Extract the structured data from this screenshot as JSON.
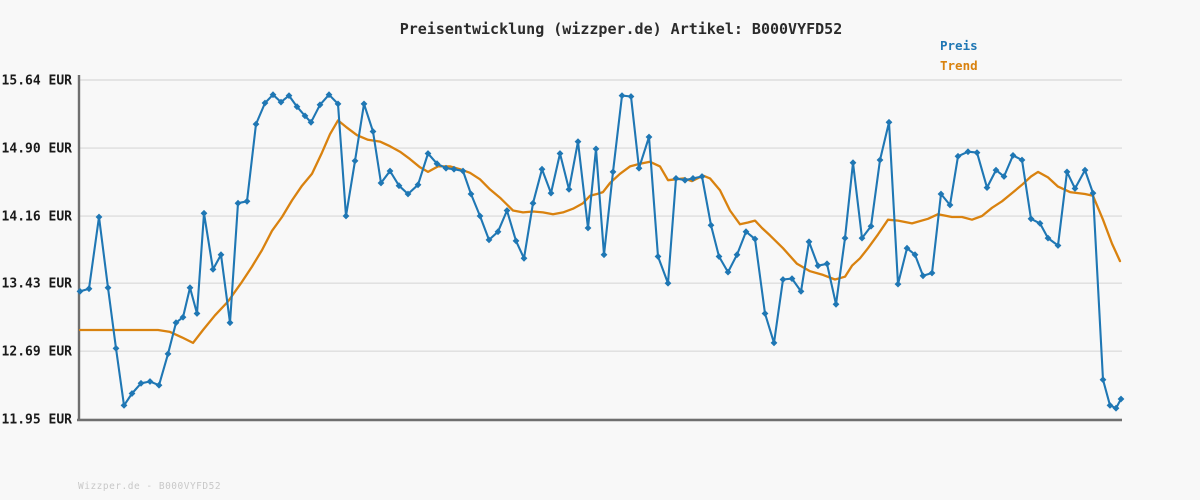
{
  "window": {
    "background": "#f8f8f8"
  },
  "header": {
    "title": "Preisentwicklung (wizzper.de) Artikel: B000VYFD52"
  },
  "legend": {
    "position": "top-right",
    "items": [
      {
        "label": "Preis",
        "color": "#1f77b4"
      },
      {
        "label": "Trend",
        "color": "#d9820f"
      }
    ]
  },
  "footer": {
    "watermark": "Wizzper.de - B000VYFD52"
  },
  "chart_data": {
    "type": "line",
    "title": "Preisentwicklung (wizzper.de) Artikel: B000VYFD52",
    "unit": "EUR",
    "xlabel": "",
    "ylabel": "",
    "x_tick_labels": [],
    "grid": true,
    "ylim": [
      11.95,
      15.64
    ],
    "y_ticks": [
      {
        "value": 15.64,
        "label": "15.64 EUR"
      },
      {
        "value": 14.9,
        "label": "14.90 EUR"
      },
      {
        "value": 14.16,
        "label": "14.16 EUR"
      },
      {
        "value": 13.43,
        "label": "13.43 EUR"
      },
      {
        "value": 12.69,
        "label": "12.69 EUR"
      },
      {
        "value": 11.95,
        "label": "11.95 EUR"
      }
    ],
    "series": [
      {
        "name": "Preis",
        "color": "#1f77b4",
        "marker": "diamond",
        "points": [
          [
            80,
            13.34
          ],
          [
            89,
            13.37
          ],
          [
            99,
            14.15
          ],
          [
            108,
            13.38
          ],
          [
            116,
            12.72
          ],
          [
            124,
            12.1
          ],
          [
            132,
            12.23
          ],
          [
            141,
            12.34
          ],
          [
            150,
            12.36
          ],
          [
            159,
            12.32
          ],
          [
            168,
            12.66
          ],
          [
            176,
            13.0
          ],
          [
            183,
            13.06
          ],
          [
            190,
            13.38
          ],
          [
            197,
            13.1
          ],
          [
            204,
            14.19
          ],
          [
            213,
            13.58
          ],
          [
            221,
            13.74
          ],
          [
            230,
            13.0
          ],
          [
            238,
            14.3
          ],
          [
            247,
            14.32
          ],
          [
            256,
            15.16
          ],
          [
            265,
            15.39
          ],
          [
            273,
            15.48
          ],
          [
            281,
            15.4
          ],
          [
            289,
            15.47
          ],
          [
            297,
            15.35
          ],
          [
            305,
            15.25
          ],
          [
            311,
            15.18
          ],
          [
            320,
            15.37
          ],
          [
            329,
            15.48
          ],
          [
            338,
            15.38
          ],
          [
            346,
            14.16
          ],
          [
            355,
            14.76
          ],
          [
            364,
            15.38
          ],
          [
            373,
            15.08
          ],
          [
            381,
            14.52
          ],
          [
            390,
            14.65
          ],
          [
            399,
            14.49
          ],
          [
            408,
            14.4
          ],
          [
            418,
            14.5
          ],
          [
            428,
            14.84
          ],
          [
            437,
            14.73
          ],
          [
            446,
            14.68
          ],
          [
            454,
            14.67
          ],
          [
            463,
            14.65
          ],
          [
            471,
            14.4
          ],
          [
            480,
            14.16
          ],
          [
            489,
            13.9
          ],
          [
            498,
            13.99
          ],
          [
            507,
            14.22
          ],
          [
            516,
            13.89
          ],
          [
            524,
            13.7
          ],
          [
            533,
            14.3
          ],
          [
            542,
            14.67
          ],
          [
            551,
            14.41
          ],
          [
            560,
            14.84
          ],
          [
            569,
            14.45
          ],
          [
            578,
            14.97
          ],
          [
            588,
            14.03
          ],
          [
            596,
            14.89
          ],
          [
            604,
            13.74
          ],
          [
            613,
            14.64
          ],
          [
            622,
            15.47
          ],
          [
            631,
            15.46
          ],
          [
            639,
            14.68
          ],
          [
            649,
            15.02
          ],
          [
            658,
            13.72
          ],
          [
            668,
            13.43
          ],
          [
            676,
            14.57
          ],
          [
            685,
            14.55
          ],
          [
            693,
            14.57
          ],
          [
            702,
            14.59
          ],
          [
            711,
            14.06
          ],
          [
            719,
            13.72
          ],
          [
            728,
            13.55
          ],
          [
            737,
            13.74
          ],
          [
            746,
            13.99
          ],
          [
            755,
            13.91
          ],
          [
            765,
            13.1
          ],
          [
            774,
            12.78
          ],
          [
            783,
            13.47
          ],
          [
            792,
            13.48
          ],
          [
            801,
            13.34
          ],
          [
            809,
            13.88
          ],
          [
            818,
            13.62
          ],
          [
            827,
            13.64
          ],
          [
            836,
            13.2
          ],
          [
            845,
            13.92
          ],
          [
            853,
            14.74
          ],
          [
            862,
            13.92
          ],
          [
            871,
            14.05
          ],
          [
            880,
            14.77
          ],
          [
            889,
            15.18
          ],
          [
            898,
            13.42
          ],
          [
            907,
            13.81
          ],
          [
            915,
            13.74
          ],
          [
            923,
            13.51
          ],
          [
            932,
            13.54
          ],
          [
            941,
            14.4
          ],
          [
            950,
            14.28
          ],
          [
            958,
            14.81
          ],
          [
            968,
            14.86
          ],
          [
            977,
            14.85
          ],
          [
            987,
            14.47
          ],
          [
            996,
            14.66
          ],
          [
            1004,
            14.59
          ],
          [
            1013,
            14.82
          ],
          [
            1022,
            14.77
          ],
          [
            1031,
            14.13
          ],
          [
            1040,
            14.08
          ],
          [
            1048,
            13.92
          ],
          [
            1058,
            13.84
          ],
          [
            1067,
            14.64
          ],
          [
            1075,
            14.46
          ],
          [
            1085,
            14.66
          ],
          [
            1093,
            14.41
          ],
          [
            1103,
            12.38
          ],
          [
            1110,
            12.1
          ],
          [
            1116,
            12.07
          ],
          [
            1121,
            12.17
          ]
        ]
      },
      {
        "name": "Trend",
        "color": "#d9820f",
        "marker": "none",
        "points": [
          [
            80,
            12.92
          ],
          [
            100,
            12.92
          ],
          [
            120,
            12.92
          ],
          [
            140,
            12.92
          ],
          [
            158,
            12.92
          ],
          [
            170,
            12.9
          ],
          [
            182,
            12.84
          ],
          [
            193,
            12.78
          ],
          [
            203,
            12.92
          ],
          [
            215,
            13.08
          ],
          [
            228,
            13.23
          ],
          [
            241,
            13.43
          ],
          [
            252,
            13.61
          ],
          [
            262,
            13.79
          ],
          [
            272,
            14.0
          ],
          [
            282,
            14.15
          ],
          [
            292,
            14.33
          ],
          [
            302,
            14.49
          ],
          [
            312,
            14.62
          ],
          [
            322,
            14.85
          ],
          [
            330,
            15.05
          ],
          [
            338,
            15.2
          ],
          [
            346,
            15.13
          ],
          [
            357,
            15.04
          ],
          [
            368,
            14.99
          ],
          [
            380,
            14.97
          ],
          [
            390,
            14.92
          ],
          [
            400,
            14.86
          ],
          [
            410,
            14.78
          ],
          [
            420,
            14.69
          ],
          [
            428,
            14.64
          ],
          [
            438,
            14.7
          ],
          [
            450,
            14.7
          ],
          [
            460,
            14.67
          ],
          [
            470,
            14.63
          ],
          [
            480,
            14.56
          ],
          [
            490,
            14.45
          ],
          [
            500,
            14.36
          ],
          [
            513,
            14.22
          ],
          [
            523,
            14.2
          ],
          [
            533,
            14.21
          ],
          [
            543,
            14.2
          ],
          [
            553,
            14.18
          ],
          [
            563,
            14.2
          ],
          [
            573,
            14.24
          ],
          [
            583,
            14.3
          ],
          [
            590,
            14.38
          ],
          [
            597,
            14.4
          ],
          [
            603,
            14.42
          ],
          [
            610,
            14.52
          ],
          [
            620,
            14.62
          ],
          [
            630,
            14.7
          ],
          [
            640,
            14.73
          ],
          [
            650,
            14.75
          ],
          [
            660,
            14.7
          ],
          [
            668,
            14.55
          ],
          [
            676,
            14.56
          ],
          [
            684,
            14.57
          ],
          [
            692,
            14.54
          ],
          [
            703,
            14.6
          ],
          [
            710,
            14.57
          ],
          [
            720,
            14.44
          ],
          [
            730,
            14.22
          ],
          [
            740,
            14.07
          ],
          [
            748,
            14.09
          ],
          [
            755,
            14.11
          ],
          [
            762,
            14.03
          ],
          [
            770,
            13.95
          ],
          [
            783,
            13.81
          ],
          [
            797,
            13.64
          ],
          [
            810,
            13.56
          ],
          [
            823,
            13.52
          ],
          [
            835,
            13.47
          ],
          [
            845,
            13.5
          ],
          [
            852,
            13.62
          ],
          [
            860,
            13.7
          ],
          [
            868,
            13.81
          ],
          [
            878,
            13.96
          ],
          [
            888,
            14.12
          ],
          [
            898,
            14.11
          ],
          [
            912,
            14.08
          ],
          [
            928,
            14.13
          ],
          [
            938,
            14.18
          ],
          [
            952,
            14.15
          ],
          [
            962,
            14.15
          ],
          [
            972,
            14.12
          ],
          [
            982,
            14.16
          ],
          [
            992,
            14.25
          ],
          [
            1002,
            14.32
          ],
          [
            1012,
            14.41
          ],
          [
            1022,
            14.5
          ],
          [
            1031,
            14.59
          ],
          [
            1038,
            14.64
          ],
          [
            1048,
            14.58
          ],
          [
            1058,
            14.48
          ],
          [
            1070,
            14.42
          ],
          [
            1085,
            14.4
          ],
          [
            1093,
            14.38
          ],
          [
            1103,
            14.12
          ],
          [
            1112,
            13.86
          ],
          [
            1120,
            13.67
          ]
        ]
      }
    ]
  }
}
